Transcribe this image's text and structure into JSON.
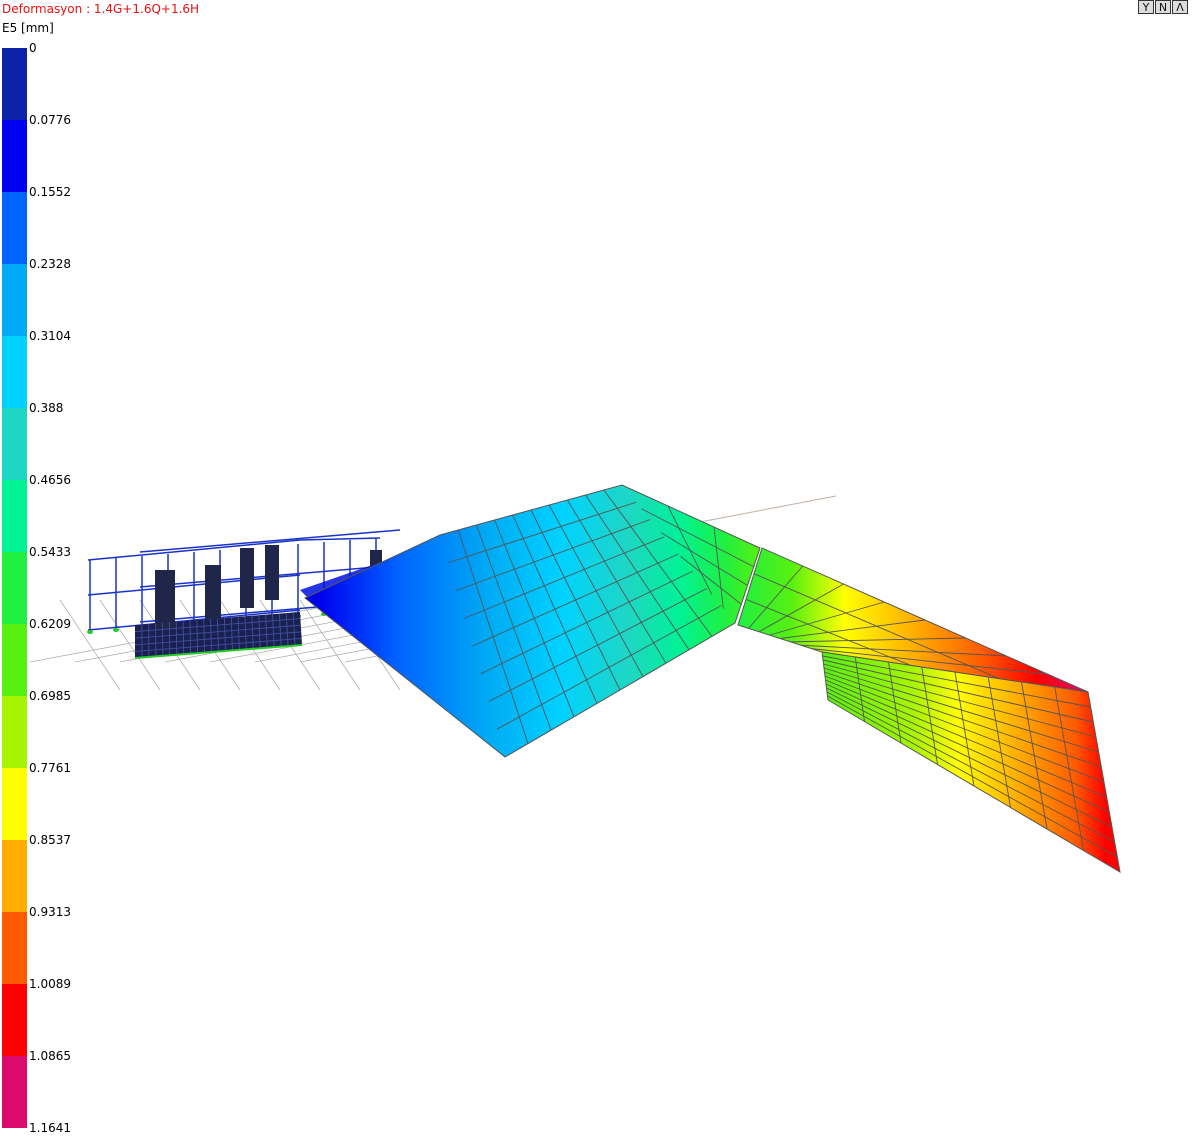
{
  "header": {
    "title": "Deformasyon : 1.4G+1.6Q+1.6H",
    "unit_label": "E5  [mm]"
  },
  "toolbar": {
    "buttons": [
      {
        "label": "Y",
        "icon": "filter-y-icon"
      },
      {
        "label": "N",
        "icon": "n-icon"
      },
      {
        "label": "Λ",
        "icon": "lambda-icon"
      }
    ]
  },
  "legend": {
    "values": [
      "0",
      "0.0776",
      "0.1552",
      "0.2328",
      "0.3104",
      "0.388",
      "0.4656",
      "0.5433",
      "0.6209",
      "0.6985",
      "0.7761",
      "0.8537",
      "0.9313",
      "1.0089",
      "1.0865",
      "1.1641"
    ],
    "colors": [
      "#0c22a8",
      "#0000f0",
      "#0064ff",
      "#00aaf4",
      "#00d2ff",
      "#1ed6c4",
      "#00f294",
      "#20f040",
      "#58f010",
      "#a8f400",
      "#ffff00",
      "#ffae00",
      "#ff5a00",
      "#ff0000",
      "#dc0a6e"
    ]
  },
  "colors": {
    "frame": "#1a32c8",
    "mesh_line": "#555555",
    "solid_mesh": "#1a2050",
    "support": "#22cc22",
    "ground_grid": "#b0b0b0"
  }
}
